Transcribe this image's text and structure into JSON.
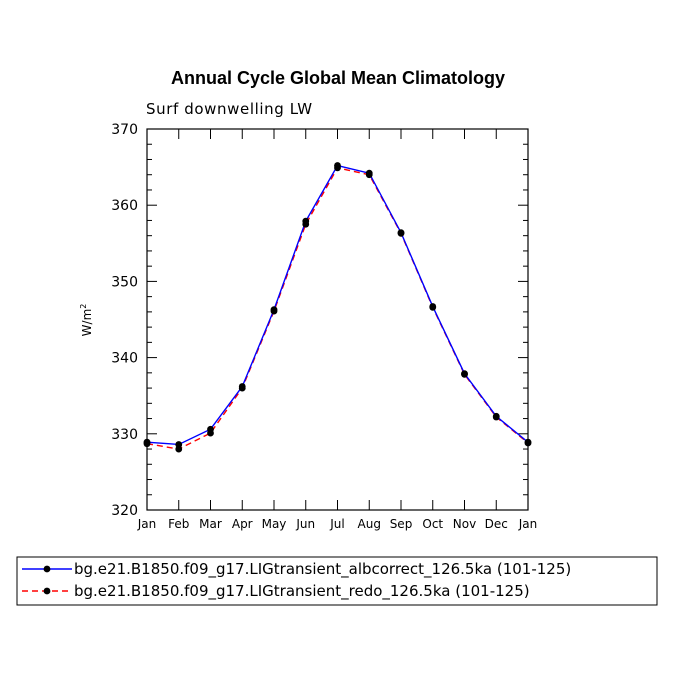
{
  "chart_data": {
    "type": "line",
    "title": "Annual Cycle Global Mean Climatology",
    "subtitle": "Surf downwelling LW",
    "ylabel_base": "W/m",
    "ylabel_sup": "2",
    "ylim": [
      320,
      370
    ],
    "y_major_ticks": [
      320,
      330,
      340,
      350,
      360,
      370
    ],
    "y_minor_step": 2,
    "categories": [
      "Jan",
      "Feb",
      "Mar",
      "Apr",
      "May",
      "Jun",
      "Jul",
      "Aug",
      "Sep",
      "Oct",
      "Nov",
      "Dec",
      "Jan"
    ],
    "series": [
      {
        "name": "bg.e21.B1850.f09_g17.LIGtransient_albcorrect_126.5ka (101-125)",
        "color": "#0000ff",
        "dash": "solid",
        "values": [
          328.9,
          328.6,
          330.6,
          336.2,
          346.3,
          357.9,
          365.2,
          364.2,
          356.4,
          346.7,
          337.9,
          332.3,
          328.9
        ]
      },
      {
        "name": "bg.e21.B1850.f09_g17.LIGtransient_redo_126.5ka (101-125)",
        "color": "#ff0000",
        "dash": "dashed",
        "values": [
          328.7,
          328.0,
          330.1,
          336.0,
          346.1,
          357.5,
          364.9,
          364.0,
          356.3,
          346.6,
          337.8,
          332.2,
          328.8
        ]
      }
    ]
  }
}
